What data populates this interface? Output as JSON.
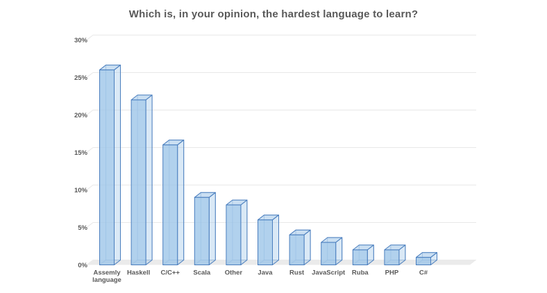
{
  "chart_data": {
    "type": "bar",
    "projection": "3d",
    "title": "Which is, in your opinion, the hardest language to learn?",
    "categories": [
      "Assemly language",
      "Haskell",
      "C/C++",
      "Scala",
      "Other",
      "Java",
      "Rust",
      "JavaScript",
      "Ruba",
      "PHP",
      "C#"
    ],
    "values": [
      26,
      22,
      16,
      9,
      8,
      6,
      4,
      3,
      2,
      2,
      1
    ],
    "xlabel": "",
    "ylabel": "",
    "ylim": [
      0,
      30
    ],
    "ytick_step": 5,
    "ytick_labels": [
      "0%",
      "5%",
      "10%",
      "15%",
      "20%",
      "25%",
      "30%"
    ],
    "grid": true,
    "legend": false,
    "colors": {
      "background": "#FFFFFF",
      "title_text": "#595959",
      "axis_text": "#595959",
      "gridline": "#E8E8E8",
      "floor": "#EBEBEB",
      "bar_front": "rgba(158,197,232,0.80)",
      "bar_side": "rgba(158,197,232,0.38)",
      "bar_top": "rgba(158,197,232,0.55)",
      "bar_stroke": "#4A7EBE",
      "bar_stroke_back": "rgba(74,126,190,0.45)"
    }
  }
}
